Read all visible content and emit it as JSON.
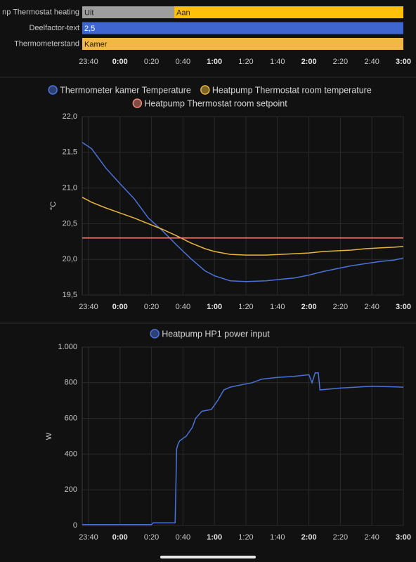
{
  "chart_data": [
    {
      "type": "timeline",
      "xlim": [
        -24,
        180
      ],
      "xticks": [
        {
          "value": -20,
          "label": "23:40"
        },
        {
          "value": 0,
          "label": "0:00"
        },
        {
          "value": 20,
          "label": "0:20"
        },
        {
          "value": 40,
          "label": "0:40"
        },
        {
          "value": 60,
          "label": "1:00"
        },
        {
          "value": 80,
          "label": "1:20"
        },
        {
          "value": 100,
          "label": "1:40"
        },
        {
          "value": 120,
          "label": "2:00"
        },
        {
          "value": 140,
          "label": "2:20"
        },
        {
          "value": 160,
          "label": "2:40"
        },
        {
          "value": 180,
          "label": "3:00"
        }
      ],
      "rows": [
        {
          "label": "np Thermostat heating",
          "segments": [
            {
              "label": "Uit",
              "start": -24,
              "end": 34.5,
              "color": "#9e9e9e"
            },
            {
              "label": "Aan",
              "start": 34.5,
              "end": 180,
              "color": "#ffc107"
            }
          ]
        },
        {
          "label": "Deelfactor-text",
          "segments": [
            {
              "label": "2,5",
              "start": -24,
              "end": 180,
              "color": "#3f66d0"
            }
          ]
        },
        {
          "label": "Thermometerstand",
          "segments": [
            {
              "label": "Kamer",
              "start": -24,
              "end": 180,
              "color": "#f2b843"
            }
          ]
        }
      ]
    },
    {
      "type": "line",
      "ylabel": "°C",
      "xlim": [
        -24,
        180
      ],
      "xticks": [
        {
          "value": -20,
          "label": "23:40"
        },
        {
          "value": 0,
          "label": "0:00"
        },
        {
          "value": 20,
          "label": "0:20"
        },
        {
          "value": 40,
          "label": "0:40"
        },
        {
          "value": 60,
          "label": "1:00"
        },
        {
          "value": 80,
          "label": "1:20"
        },
        {
          "value": 100,
          "label": "1:40"
        },
        {
          "value": 120,
          "label": "2:00"
        },
        {
          "value": 140,
          "label": "2:20"
        },
        {
          "value": 160,
          "label": "2:40"
        },
        {
          "value": 180,
          "label": "3:00"
        }
      ],
      "ylim": [
        19.5,
        22.0
      ],
      "yticks": [
        {
          "value": 19.5,
          "label": "19,5"
        },
        {
          "value": 20,
          "label": "20,0"
        },
        {
          "value": 20.5,
          "label": "20,5"
        },
        {
          "value": 21,
          "label": "21,0"
        },
        {
          "value": 21.5,
          "label": "21,5"
        },
        {
          "value": 22,
          "label": "22,0"
        }
      ],
      "grid": true,
      "x": [
        -24,
        -18,
        -9,
        0,
        9,
        18,
        27,
        36,
        45,
        54,
        60,
        70,
        80,
        93,
        102,
        111,
        120,
        129,
        138,
        147,
        156,
        165,
        174,
        180
      ],
      "series": [
        {
          "name": "Thermometer kamer Temperature",
          "color": "#4a72d9",
          "values": [
            21.64,
            21.55,
            21.28,
            21.06,
            20.85,
            20.58,
            20.4,
            20.2,
            20.01,
            19.84,
            19.77,
            19.7,
            19.69,
            19.7,
            19.72,
            19.74,
            19.78,
            19.83,
            19.87,
            19.91,
            19.94,
            19.97,
            19.99,
            20.02
          ]
        },
        {
          "name": "Heatpump Thermostat room temperature",
          "color": "#e8b53c",
          "values": [
            20.87,
            20.8,
            20.72,
            20.65,
            20.58,
            20.5,
            20.42,
            20.33,
            20.23,
            20.15,
            20.11,
            20.07,
            20.06,
            20.06,
            20.07,
            20.08,
            20.09,
            20.11,
            20.12,
            20.13,
            20.15,
            20.16,
            20.17,
            20.18
          ]
        },
        {
          "name": "Heatpump Thermostat room setpoint",
          "color": "#f08a7a",
          "values": [
            20.3,
            20.3,
            20.3,
            20.3,
            20.3,
            20.3,
            20.3,
            20.3,
            20.3,
            20.3,
            20.3,
            20.3,
            20.3,
            20.3,
            20.3,
            20.3,
            20.3,
            20.3,
            20.3,
            20.3,
            20.3,
            20.3,
            20.3,
            20.3
          ]
        }
      ]
    },
    {
      "type": "line",
      "ylabel": "W",
      "xlim": [
        -24,
        180
      ],
      "xticks": [
        {
          "value": -20,
          "label": "23:40"
        },
        {
          "value": 0,
          "label": "0:00"
        },
        {
          "value": 20,
          "label": "0:20"
        },
        {
          "value": 40,
          "label": "0:40"
        },
        {
          "value": 60,
          "label": "1:00"
        },
        {
          "value": 80,
          "label": "1:20"
        },
        {
          "value": 100,
          "label": "1:40"
        },
        {
          "value": 120,
          "label": "2:00"
        },
        {
          "value": 140,
          "label": "2:20"
        },
        {
          "value": 160,
          "label": "2:40"
        },
        {
          "value": 180,
          "label": "3:00"
        }
      ],
      "ylim": [
        0,
        1000
      ],
      "yticks": [
        0,
        200,
        400,
        600,
        800,
        {
          "value": 1000,
          "label": "1.000"
        }
      ],
      "grid": true,
      "x": [
        -24,
        20,
        21,
        35,
        36,
        37,
        38,
        42,
        46,
        48,
        52,
        58,
        62,
        66,
        70,
        78,
        84,
        90,
        100,
        110,
        120,
        122,
        124,
        126,
        127,
        140,
        150,
        160,
        170,
        180
      ],
      "series": [
        {
          "name": "Heatpump HP1 power input",
          "color": "#4a72d9",
          "values": [
            5,
            5,
            15,
            15,
            430,
            460,
            475,
            500,
            550,
            600,
            640,
            650,
            700,
            760,
            775,
            790,
            800,
            820,
            830,
            835,
            845,
            800,
            855,
            855,
            760,
            770,
            775,
            780,
            778,
            775
          ]
        }
      ]
    }
  ]
}
